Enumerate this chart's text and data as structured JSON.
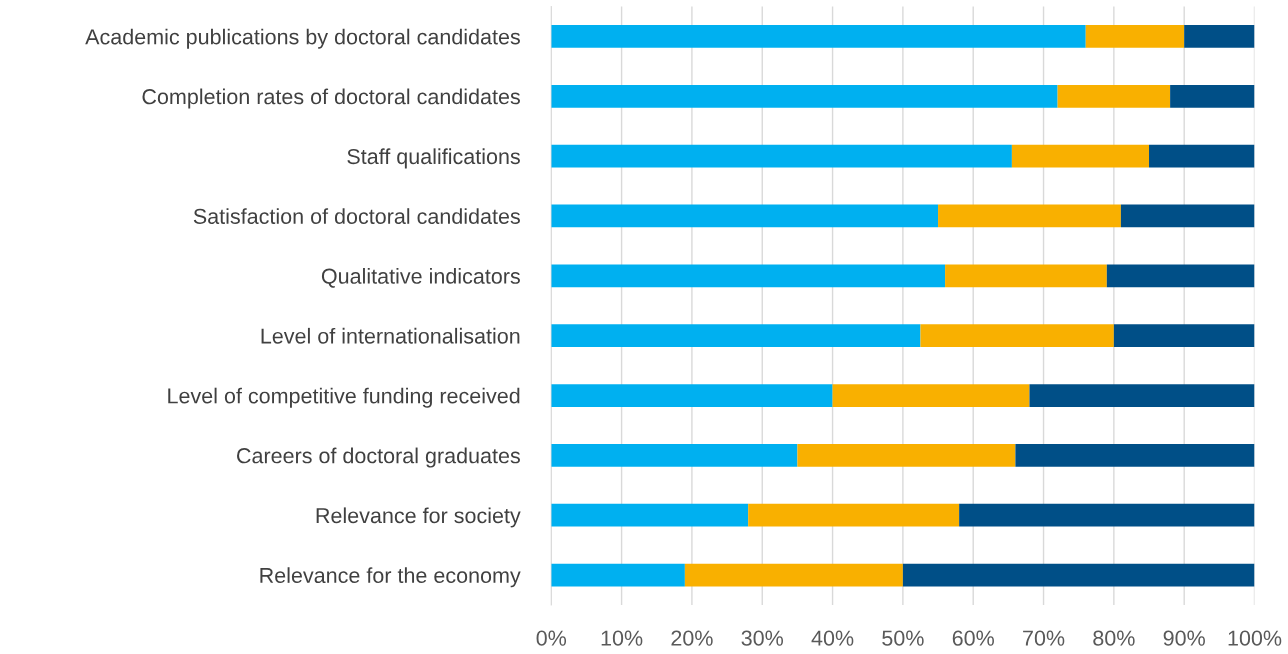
{
  "chart_data": {
    "type": "bar",
    "orientation": "horizontal",
    "stacked": true,
    "categories": [
      "Academic publications by doctoral candidates",
      "Completion rates of doctoral candidates",
      "Staff qualifications",
      "Satisfaction of doctoral candidates",
      "Qualitative indicators",
      "Level of internationalisation",
      "Level of competitive funding received",
      "Careers of doctoral graduates",
      "Relevance for society",
      "Relevance for the economy"
    ],
    "series": [
      {
        "color": "#00b0f0",
        "values": [
          76,
          72,
          65.5,
          55,
          56,
          52.5,
          40,
          35,
          28,
          19
        ]
      },
      {
        "color": "#f9b000",
        "values": [
          14,
          16,
          19.5,
          26,
          23,
          27.5,
          28,
          31,
          30,
          31
        ]
      },
      {
        "color": "#004f87",
        "values": [
          10,
          12,
          15,
          19,
          21,
          20,
          32,
          34,
          42,
          50
        ]
      }
    ],
    "xlim": [
      0,
      100
    ],
    "xticks": [
      {
        "value": 0,
        "label": "0%"
      },
      {
        "value": 10,
        "label": "10%"
      },
      {
        "value": 20,
        "label": "20%"
      },
      {
        "value": 30,
        "label": "30%"
      },
      {
        "value": 40,
        "label": "40%"
      },
      {
        "value": 50,
        "label": "50%"
      },
      {
        "value": 60,
        "label": "60%"
      },
      {
        "value": 70,
        "label": "70%"
      },
      {
        "value": 80,
        "label": "80%"
      },
      {
        "value": 90,
        "label": "90%"
      },
      {
        "value": 100,
        "label": "100%"
      }
    ],
    "grid": "x",
    "legend": false
  }
}
